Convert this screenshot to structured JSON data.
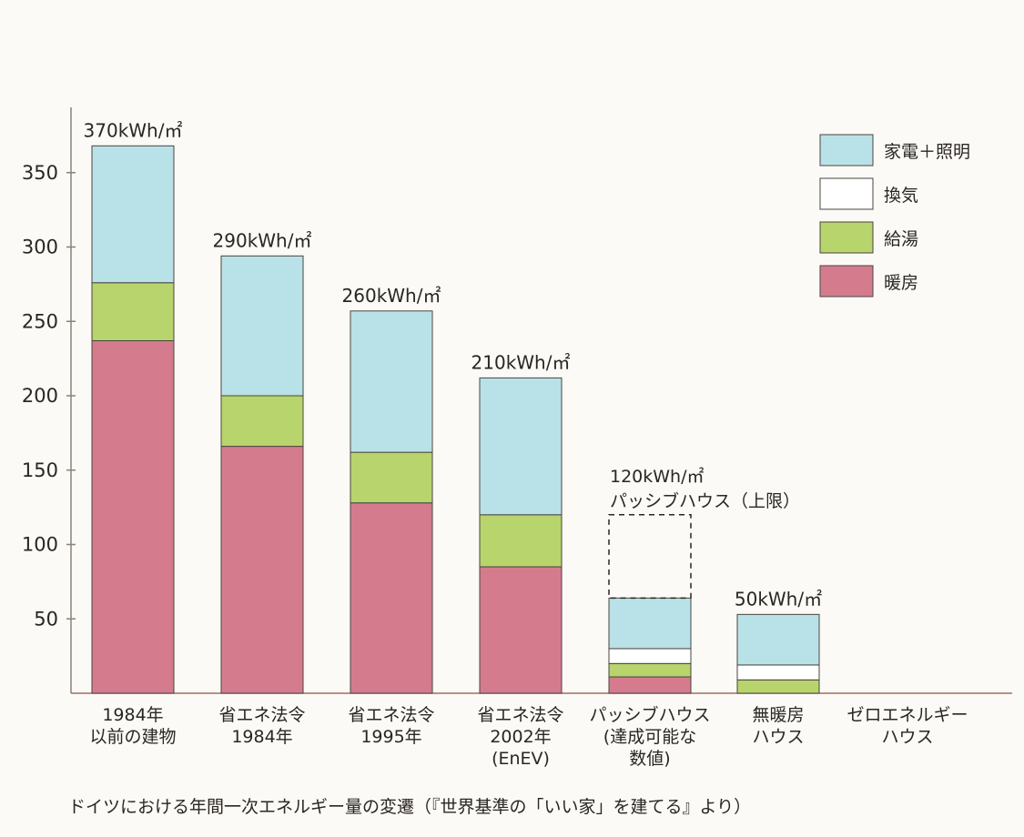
{
  "chart_data": {
    "type": "bar",
    "stacked": true,
    "categories": [
      [
        "1984年",
        "以前の建物"
      ],
      [
        "省エネ法令",
        "1984年"
      ],
      [
        "省エネ法令",
        "1995年"
      ],
      [
        "省エネ法令",
        "2002年",
        "(EnEV)"
      ],
      [
        "パッシブハウス",
        "(達成可能な",
        "数値)"
      ],
      [
        "無暖房",
        "ハウス"
      ],
      [
        "ゼロエネルギー",
        "ハウス"
      ]
    ],
    "series": [
      {
        "name": "暖房",
        "color": "#d47c8e",
        "values": [
          237,
          166,
          128,
          85,
          11,
          0,
          0
        ]
      },
      {
        "name": "給湯",
        "color": "#b8d46c",
        "values": [
          39,
          34,
          34,
          35,
          9,
          9,
          0
        ]
      },
      {
        "name": "換気",
        "color": "#ffffff",
        "values": [
          0,
          0,
          0,
          0,
          10,
          10,
          0
        ]
      },
      {
        "name": "家電＋照明",
        "color": "#b9e2e8",
        "values": [
          92,
          94,
          95,
          92,
          34,
          34,
          0
        ]
      }
    ],
    "legend_order": [
      "家電＋照明",
      "換気",
      "給湯",
      "暖房"
    ],
    "totals": [
      "370kWh/㎡",
      "290kWh/㎡",
      "260kWh/㎡",
      "210kWh/㎡",
      "",
      "50kWh/㎡",
      ""
    ],
    "annotation": {
      "category_index": 4,
      "value": 120,
      "lines": [
        "120kWh/㎡",
        "パッシブハウス（上限）"
      ],
      "style": "dashed"
    },
    "yticks": [
      50,
      100,
      150,
      200,
      250,
      300,
      350
    ],
    "ylim": [
      0,
      380
    ],
    "legend_position": "top-right",
    "grid": false
  },
  "caption": "ドイツにおける年間一次エネルギー量の変遷（『世界基準の「いい家」を建てる』より）"
}
